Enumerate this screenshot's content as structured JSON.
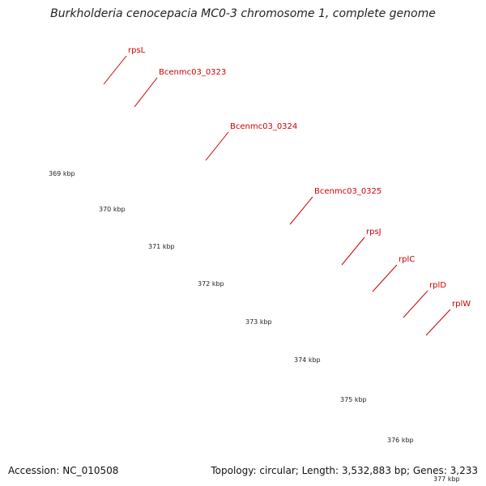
{
  "title": "Burkholderia cenocepacia MC0-3 chromosome 1, complete genome",
  "footer": {
    "accession_label": "Accession: NC_010508",
    "topology_info": "Topology: circular; Length: 3,532,883 bp; Genes: 3,233"
  },
  "colors": {
    "strand_pink": "#f08080",
    "strand_red": "#ff0000",
    "magenta_feature": "#ff33aa",
    "backbone": "#999999",
    "tick_green": "#0b7a0b",
    "gene_label": "#cc0000"
  },
  "genes": [
    {
      "name": "rpsL"
    },
    {
      "name": "Bcenmc03_0323"
    },
    {
      "name": "Bcenmc03_0324"
    },
    {
      "name": "Bcenmc03_0325"
    },
    {
      "name": "rpsJ"
    },
    {
      "name": "rplC"
    },
    {
      "name": "rplD"
    },
    {
      "name": "rplW"
    }
  ],
  "kbp_ticks": [
    "369 kbp",
    "370 kbp",
    "371 kbp",
    "372 kbp",
    "373 kbp",
    "374 kbp",
    "375 kbp",
    "376 kbp",
    "377 kbp"
  ]
}
